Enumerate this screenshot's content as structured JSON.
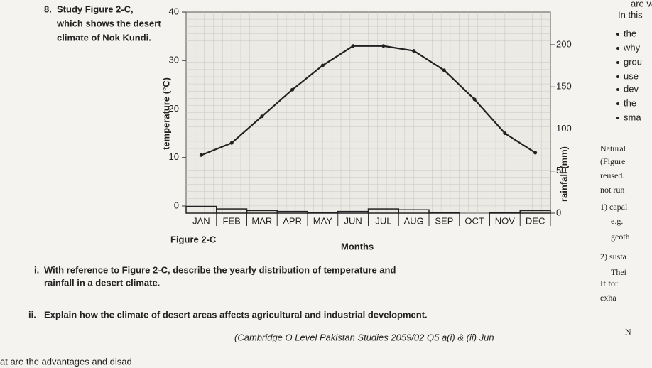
{
  "header": {
    "corner": "are vali"
  },
  "question": {
    "number": "8.",
    "lines": [
      "Study Figure 2-C,",
      "which shows the desert",
      "climate of Nok Kundi."
    ],
    "part_i": {
      "label": "i.",
      "lines": [
        "With reference to Figure 2-C, describe the yearly distribution of temperature and",
        "rainfall in a desert climate."
      ]
    },
    "part_ii": {
      "label": "ii.",
      "text": "Explain how the climate of desert areas affects agricultural and industrial development."
    },
    "source": "(Cambridge O Level Pakistan Studies 2059/02 Q5 a(i) & (ii) Jun"
  },
  "figure": {
    "caption": "Figure 2-C",
    "x_label": "Months",
    "y_label": "temperature (°C)",
    "y2_label": "rainfall (mm)",
    "categories": [
      "JAN",
      "FEB",
      "MAR",
      "APR",
      "MAY",
      "JUN",
      "JUL",
      "AUG",
      "SEP",
      "OCT",
      "NOV",
      "DEC"
    ],
    "temperature": [
      10.5,
      13,
      18.5,
      24,
      29,
      33,
      33,
      32,
      28,
      22,
      15,
      11
    ],
    "rainfall": [
      8,
      5,
      3,
      2,
      1,
      2,
      5,
      4,
      1,
      0,
      1,
      3
    ],
    "ylim": [
      0,
      40
    ],
    "yticks": [
      0,
      10,
      20,
      30,
      40
    ],
    "y2lim": [
      0,
      200
    ],
    "y2ticks": [
      0,
      50,
      100,
      150,
      200
    ]
  },
  "sidebar": [
    "In this",
    "the",
    "why",
    "grou",
    "use",
    "dev",
    "the",
    "sma",
    "Natural",
    "(Figure",
    "reused.",
    "not run",
    "1) capal",
    "e.g.",
    "geoth",
    "2) susta",
    "Thei",
    "If for",
    "exha",
    "N"
  ],
  "footer": "at are the advantages and disad"
}
